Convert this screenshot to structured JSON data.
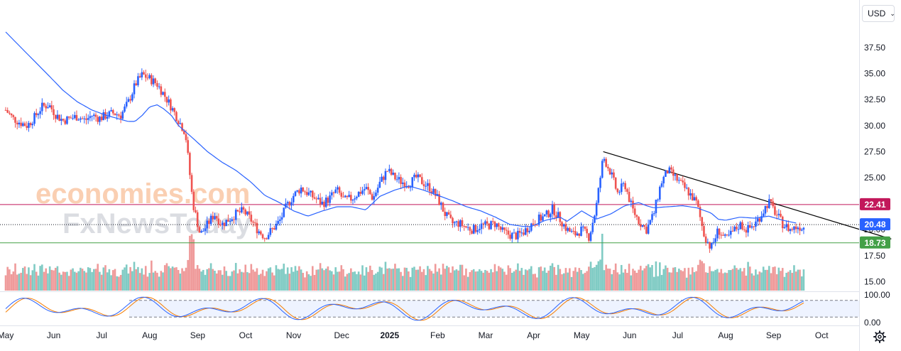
{
  "currency_select": {
    "value": "USD"
  },
  "colors": {
    "up": "#2962ff",
    "down": "#ef5350",
    "ma": "#2962ff",
    "vol_up": "#80cbc4",
    "vol_down": "#ef9a9a",
    "resistance": "#c2185b",
    "support": "#43a047",
    "current": "#2962ff",
    "trendline": "#000000",
    "stoch_k": "#2962ff",
    "stoch_d": "#f57c00"
  },
  "watermark": {
    "line1": "economies.com",
    "line2": "FxNewsToday"
  },
  "chart_data": [
    {
      "type": "candlestick",
      "x_ticks": [
        "May",
        "Jun",
        "Jul",
        "Aug",
        "Sep",
        "Oct",
        "Nov",
        "Dec",
        "2025",
        "Feb",
        "Mar",
        "Apr",
        "May",
        "Jun",
        "Jul",
        "Aug",
        "Sep",
        "Oct"
      ],
      "y_ticks": [
        "37.50",
        "35.00",
        "32.50",
        "30.00",
        "27.50",
        "25.00",
        "22.50",
        "20.00",
        "17.50",
        "15.00"
      ],
      "ylim": [
        13.6,
        39.5
      ],
      "moving_average_anchors": [
        [
          0,
          39.0
        ],
        [
          0.0274,
          37.6
        ],
        [
          0.0548,
          36.2
        ],
        [
          0.0822,
          34.8
        ],
        [
          0.109,
          33.4
        ],
        [
          0.136,
          32.3
        ],
        [
          0.164,
          31.5
        ],
        [
          0.191,
          31.0
        ],
        [
          0.219,
          30.6
        ],
        [
          0.233,
          30.4
        ],
        [
          0.246,
          30.4
        ],
        [
          0.26,
          31.0
        ],
        [
          0.274,
          31.8
        ],
        [
          0.288,
          32.0
        ],
        [
          0.301,
          31.6
        ],
        [
          0.315,
          31.0
        ],
        [
          0.329,
          30.0
        ],
        [
          0.356,
          28.8
        ],
        [
          0.384,
          27.5
        ],
        [
          0.411,
          26.5
        ],
        [
          0.438,
          25.7
        ],
        [
          0.466,
          24.6
        ],
        [
          0.493,
          23.3
        ],
        [
          0.521,
          22.6
        ],
        [
          0.548,
          21.8
        ],
        [
          0.575,
          21.3
        ],
        [
          0.603,
          21.8
        ],
        [
          0.63,
          22.2
        ],
        [
          0.658,
          22.2
        ],
        [
          0.685,
          21.9
        ],
        [
          0.712,
          23.2
        ],
        [
          0.74,
          23.8
        ],
        [
          0.767,
          24.2
        ],
        [
          0.795,
          23.8
        ],
        [
          0.822,
          23.3
        ],
        [
          0.849,
          22.8
        ],
        [
          0.877,
          22.2
        ],
        [
          0.904,
          21.8
        ],
        [
          0.932,
          21.2
        ],
        [
          0.959,
          20.5
        ],
        [
          0.986,
          20.3
        ],
        [
          1.0,
          20.3
        ],
        [
          1.027,
          20.9
        ],
        [
          1.055,
          21.2
        ],
        [
          1.068,
          20.8
        ],
        [
          1.096,
          21.8
        ],
        [
          1.123,
          21.0
        ],
        [
          1.151,
          21.5
        ],
        [
          1.178,
          22.3
        ],
        [
          1.205,
          22.6
        ],
        [
          1.219,
          22.3
        ],
        [
          1.233,
          22.1
        ],
        [
          1.26,
          22.2
        ],
        [
          1.288,
          22.3
        ],
        [
          1.315,
          22.1
        ],
        [
          1.342,
          21.6
        ],
        [
          1.356,
          21.0
        ],
        [
          1.37,
          20.9
        ],
        [
          1.397,
          21.2
        ],
        [
          1.425,
          21.1
        ],
        [
          1.452,
          21.3
        ],
        [
          1.479,
          20.9
        ],
        [
          1.507,
          20.6
        ]
      ],
      "price_anchors": [
        [
          0,
          31.5
        ],
        [
          0.0137,
          30.7
        ],
        [
          0.0274,
          30.3
        ],
        [
          0.0411,
          30.0
        ],
        [
          0.0548,
          30.8
        ],
        [
          0.0685,
          31.8
        ],
        [
          0.0822,
          32.0
        ],
        [
          0.096,
          31.0
        ],
        [
          0.109,
          30.5
        ],
        [
          0.123,
          30.7
        ],
        [
          0.137,
          30.9
        ],
        [
          0.151,
          30.5
        ],
        [
          0.164,
          31.0
        ],
        [
          0.178,
          30.7
        ],
        [
          0.192,
          31.0
        ],
        [
          0.205,
          31.2
        ],
        [
          0.219,
          31.0
        ],
        [
          0.233,
          32.2
        ],
        [
          0.247,
          34.0
        ],
        [
          0.26,
          34.9
        ],
        [
          0.274,
          34.5
        ],
        [
          0.288,
          34.0
        ],
        [
          0.301,
          33.0
        ],
        [
          0.315,
          31.8
        ],
        [
          0.329,
          30.5
        ],
        [
          0.342,
          29.3
        ],
        [
          0.356,
          22.6
        ],
        [
          0.37,
          19.5
        ],
        [
          0.384,
          20.5
        ],
        [
          0.397,
          21.5
        ],
        [
          0.411,
          20.5
        ],
        [
          0.425,
          21.0
        ],
        [
          0.438,
          21.5
        ],
        [
          0.452,
          21.8
        ],
        [
          0.466,
          21.0
        ],
        [
          0.479,
          20.0
        ],
        [
          0.493,
          19.3
        ],
        [
          0.507,
          20.0
        ],
        [
          0.521,
          20.8
        ],
        [
          0.534,
          22.2
        ],
        [
          0.548,
          23.3
        ],
        [
          0.562,
          24.0
        ],
        [
          0.575,
          23.5
        ],
        [
          0.589,
          23.0
        ],
        [
          0.603,
          22.5
        ],
        [
          0.616,
          23.0
        ],
        [
          0.63,
          23.8
        ],
        [
          0.644,
          22.8
        ],
        [
          0.658,
          23.0
        ],
        [
          0.671,
          23.5
        ],
        [
          0.685,
          24.0
        ],
        [
          0.699,
          23.0
        ],
        [
          0.712,
          24.5
        ],
        [
          0.726,
          25.7
        ],
        [
          0.74,
          25.0
        ],
        [
          0.753,
          24.6
        ],
        [
          0.767,
          24.4
        ],
        [
          0.781,
          25.0
        ],
        [
          0.795,
          24.5
        ],
        [
          0.808,
          24.0
        ],
        [
          0.822,
          23.0
        ],
        [
          0.836,
          21.5
        ],
        [
          0.849,
          20.6
        ],
        [
          0.863,
          20.6
        ],
        [
          0.877,
          20.2
        ],
        [
          0.89,
          20.0
        ],
        [
          0.904,
          20.4
        ],
        [
          0.918,
          20.4
        ],
        [
          0.932,
          20.6
        ],
        [
          0.945,
          19.8
        ],
        [
          0.959,
          19.5
        ],
        [
          0.973,
          19.4
        ],
        [
          0.986,
          19.8
        ],
        [
          1.0,
          20.5
        ],
        [
          1.014,
          21.0
        ],
        [
          1.027,
          21.3
        ],
        [
          1.041,
          22.0
        ],
        [
          1.055,
          21.0
        ],
        [
          1.068,
          20.0
        ],
        [
          1.082,
          19.5
        ],
        [
          1.096,
          20.0
        ],
        [
          1.11,
          19.3
        ],
        [
          1.123,
          22.0
        ],
        [
          1.137,
          27.0
        ],
        [
          1.151,
          25.5
        ],
        [
          1.164,
          23.5
        ],
        [
          1.178,
          24.4
        ],
        [
          1.192,
          22.0
        ],
        [
          1.205,
          20.8
        ],
        [
          1.219,
          20.0
        ],
        [
          1.233,
          21.5
        ],
        [
          1.247,
          24.5
        ],
        [
          1.26,
          25.7
        ],
        [
          1.274,
          25.0
        ],
        [
          1.288,
          24.2
        ],
        [
          1.301,
          23.5
        ],
        [
          1.315,
          22.5
        ],
        [
          1.329,
          19.5
        ],
        [
          1.342,
          18.2
        ],
        [
          1.356,
          20.0
        ],
        [
          1.37,
          19.0
        ],
        [
          1.384,
          19.8
        ],
        [
          1.397,
          20.5
        ],
        [
          1.411,
          20.0
        ],
        [
          1.425,
          20.5
        ],
        [
          1.438,
          21.5
        ],
        [
          1.452,
          22.7
        ],
        [
          1.466,
          21.5
        ],
        [
          1.479,
          20.5
        ],
        [
          1.493,
          20.0
        ],
        [
          1.507,
          20.3
        ],
        [
          1.521,
          20.2
        ]
      ],
      "reference_lines": [
        {
          "value": 22.41,
          "label": "22.41"
        },
        {
          "value": 18.73,
          "label": "18.73"
        }
      ],
      "current_price": {
        "value": 20.48,
        "label": "20.48"
      },
      "trendline": {
        "from": [
          1.137,
          27.5
        ],
        "to": [
          1.685,
          19.1
        ]
      },
      "volume_scale_max": 1.0
    },
    {
      "type": "line",
      "name": "stochastic",
      "y_ticks": [
        "100.00",
        "0.00"
      ],
      "ylim": [
        0,
        100
      ],
      "band": [
        20,
        80
      ]
    }
  ]
}
